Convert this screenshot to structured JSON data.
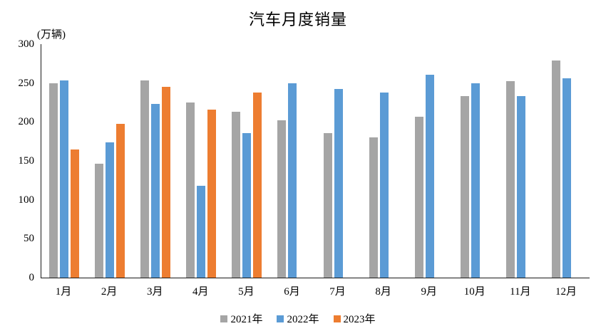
{
  "title": "汽车月度销量",
  "unit_label": "(万辆)",
  "chart_data": {
    "type": "bar",
    "title": "汽车月度销量",
    "ylabel": "(万辆)",
    "xlabel": "",
    "categories": [
      "1月",
      "2月",
      "3月",
      "4月",
      "5月",
      "6月",
      "7月",
      "8月",
      "9月",
      "10月",
      "11月",
      "12月"
    ],
    "series": [
      {
        "name": "2021年",
        "color": "#A5A5A5",
        "values": [
          250,
          146,
          253,
          225,
          213,
          202,
          186,
          180,
          207,
          233,
          252,
          279
        ]
      },
      {
        "name": "2022年",
        "color": "#5B9BD5",
        "values": [
          253,
          174,
          223,
          118,
          186,
          250,
          242,
          238,
          261,
          250,
          233,
          256
        ]
      },
      {
        "name": "2023年",
        "color": "#ED7D31",
        "values": [
          165,
          198,
          245,
          216,
          238,
          null,
          null,
          null,
          null,
          null,
          null,
          null
        ]
      }
    ],
    "ylim": [
      0,
      300
    ],
    "ytick_step": 50,
    "grid": false,
    "legend_position": "bottom",
    "axis_color": "#1a1a1a",
    "text_color": "#000000"
  }
}
